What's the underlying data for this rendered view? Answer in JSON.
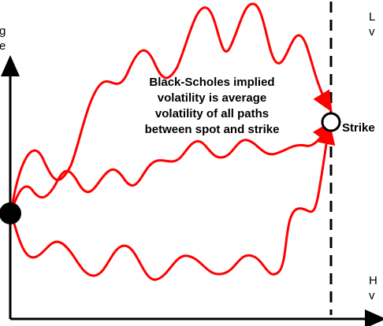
{
  "axis": {
    "y_label_fragment": [
      "g",
      "e"
    ]
  },
  "callout": {
    "lines": [
      "Black-Scholes implied",
      "volatility is average",
      "volatility of all paths",
      "between spot and strike"
    ]
  },
  "strike_label": "Strike",
  "right_labels": {
    "top": [
      "L",
      "v"
    ],
    "bottom": [
      "H",
      "v"
    ]
  },
  "colors": {
    "paths": "#ff0000",
    "axes": "#000000",
    "spot": "#000000",
    "strike_marker": "#ffffff"
  }
}
